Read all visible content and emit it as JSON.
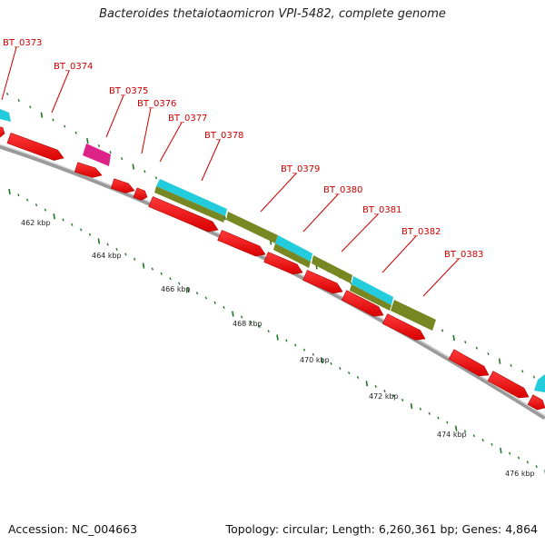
{
  "title": "Bacteroides thetaiotaomicron VPI-5482, complete genome",
  "footer": {
    "accession": "Accession: NC_004663",
    "summary": "Topology: circular; Length: 6,260,361 bp; Genes: 4,864"
  },
  "colors": {
    "gene_label": "#cc0000",
    "cds": "#ee0000",
    "cyan_feature": "#22ccdd",
    "olive_feature": "#778822",
    "magenta_feature": "#dd2288",
    "backbone": "#999999",
    "tick": "#227722"
  },
  "gene_labels": [
    "BT_0373",
    "BT_0374",
    "BT_0375",
    "BT_0376",
    "BT_0377",
    "BT_0378",
    "BT_0379",
    "BT_0380",
    "BT_0381",
    "BT_0382",
    "BT_0383"
  ],
  "kbp_labels": [
    "462 kbp",
    "464 kbp",
    "466 kbp",
    "468 kbp",
    "470 kbp",
    "472 kbp",
    "474 kbp",
    "476 kbp"
  ]
}
